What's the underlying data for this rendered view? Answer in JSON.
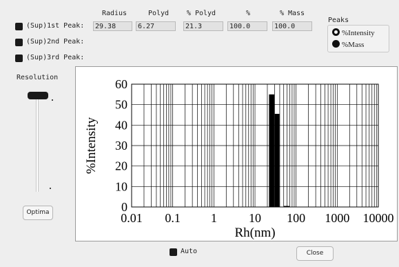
{
  "headers": {
    "radius": "Radius",
    "polyd": "Polyd",
    "pct_polyd": "% Polyd",
    "pct": "%",
    "pct_mass": "% Mass"
  },
  "peaks_rows": [
    {
      "label": "(Sup)1st Peak:",
      "radius": "29.38",
      "polyd": "6.27",
      "pct_polyd": "21.3",
      "pct": "100.0",
      "pct_mass": "100.0"
    },
    {
      "label": "(Sup)2nd Peak:"
    },
    {
      "label": "(Sup)3rd Peak:"
    }
  ],
  "peaks_group": {
    "title": "Peaks",
    "options": [
      "%Intensity",
      "%Mass"
    ],
    "selected": "%Intensity"
  },
  "resolution": {
    "title": "Resolution",
    "button": "Optima",
    "level": 1.0
  },
  "auto_label": "Auto",
  "close_label": "Close",
  "chart_data": {
    "type": "bar",
    "xlabel": "Rh(nm)",
    "ylabel": "%Intensity",
    "xscale": "log",
    "xlim": [
      0.01,
      10000
    ],
    "ylim": [
      0,
      60
    ],
    "x_ticks": [
      "0.01",
      "0.1",
      "1",
      "10",
      "100",
      "1000",
      "10000"
    ],
    "y_ticks": [
      "0",
      "10",
      "20",
      "30",
      "40",
      "50",
      "60"
    ],
    "grid": true,
    "bars": [
      {
        "x_from": 22,
        "x_to": 30,
        "value": 55
      },
      {
        "x_from": 30,
        "x_to": 40,
        "value": 45.5
      },
      {
        "x_from": 50,
        "x_to": 70,
        "value": 0.5
      }
    ]
  }
}
